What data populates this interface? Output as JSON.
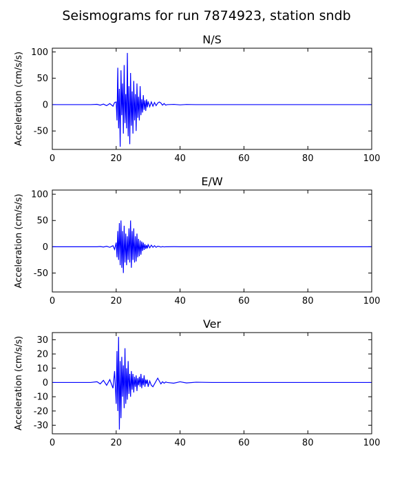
{
  "title": "Seismograms for run 7874923, station sndb",
  "chart_data": [
    {
      "type": "line",
      "title": "N/S",
      "ylabel": "Acceleration (cm/s/s)",
      "color": "#0000ff",
      "grid": false,
      "xlim": [
        0,
        100
      ],
      "xticks": [
        0,
        20,
        40,
        60,
        80,
        100
      ],
      "ylim": [
        -85,
        107
      ],
      "yticks": [
        -50,
        0,
        50,
        100
      ],
      "x": [
        0,
        5,
        10,
        12,
        14,
        15,
        16,
        17,
        18,
        19,
        19.5,
        20,
        20.25,
        20.5,
        20.75,
        21,
        21.25,
        21.5,
        21.75,
        22,
        22.25,
        22.5,
        22.75,
        23,
        23.25,
        23.5,
        23.75,
        24,
        24.25,
        24.5,
        24.75,
        25,
        25.25,
        25.5,
        25.75,
        26,
        26.25,
        26.5,
        26.75,
        27,
        27.25,
        27.5,
        27.75,
        28,
        28.25,
        28.5,
        28.75,
        29,
        29.25,
        29.5,
        29.75,
        30,
        30.5,
        31,
        31.5,
        32,
        32.5,
        33,
        33.5,
        34,
        34.5,
        35,
        35.5,
        36,
        38,
        40,
        42,
        45,
        50,
        60,
        70,
        80,
        90,
        100
      ],
      "values": [
        0,
        0,
        0,
        0,
        0.5,
        -1,
        1,
        -2,
        2,
        -3,
        4,
        5,
        -30,
        70,
        -45,
        30,
        -80,
        65,
        -20,
        40,
        -55,
        75,
        -35,
        20,
        -45,
        98,
        -60,
        35,
        -75,
        60,
        -40,
        25,
        -55,
        45,
        -30,
        20,
        -50,
        40,
        -25,
        15,
        -30,
        35,
        -20,
        10,
        -15,
        18,
        -10,
        8,
        -12,
        10,
        -5,
        6,
        -4,
        5,
        -3,
        4,
        -2,
        3,
        5,
        3,
        -1,
        2,
        -1,
        0,
        0.5,
        -0.5,
        0.3,
        0,
        0,
        0,
        0,
        0,
        0,
        0
      ]
    },
    {
      "type": "line",
      "title": "E/W",
      "ylabel": "Acceleration (cm/s/s)",
      "color": "#0000ff",
      "grid": false,
      "xlim": [
        0,
        100
      ],
      "xticks": [
        0,
        20,
        40,
        60,
        80,
        100
      ],
      "ylim": [
        -86,
        108
      ],
      "yticks": [
        -50,
        0,
        50,
        100
      ],
      "x": [
        0,
        5,
        10,
        12,
        14,
        15,
        16,
        17,
        18,
        19,
        19.5,
        20,
        20.25,
        20.5,
        20.75,
        21,
        21.25,
        21.5,
        21.75,
        22,
        22.25,
        22.5,
        22.75,
        23,
        23.25,
        23.5,
        23.75,
        24,
        24.25,
        24.5,
        24.75,
        25,
        25.25,
        25.5,
        25.75,
        26,
        26.25,
        26.5,
        26.75,
        27,
        27.25,
        27.5,
        27.75,
        28,
        28.25,
        28.5,
        28.75,
        29,
        29.25,
        29.5,
        29.75,
        30,
        30.5,
        31,
        31.5,
        32,
        32.5,
        33,
        33.5,
        34,
        34.5,
        35,
        35.5,
        36,
        38,
        40,
        42,
        45,
        50,
        60,
        70,
        80,
        90,
        100
      ],
      "values": [
        0,
        0,
        0,
        0,
        0,
        0.5,
        -0.5,
        1,
        -1,
        2,
        -5,
        8,
        -20,
        30,
        -25,
        45,
        -35,
        50,
        -40,
        30,
        -50,
        40,
        -30,
        25,
        -35,
        20,
        -25,
        35,
        -30,
        50,
        -40,
        30,
        -25,
        35,
        -30,
        20,
        -28,
        25,
        -20,
        15,
        -18,
        12,
        -15,
        10,
        -8,
        8,
        -6,
        5,
        -4,
        3,
        -3,
        4,
        -2,
        3,
        -1,
        2,
        -1,
        1,
        0.5,
        -0.5,
        0.3,
        -0.2,
        0,
        0,
        0.2,
        0,
        0,
        0,
        0,
        0,
        0,
        0,
        0,
        0
      ]
    },
    {
      "type": "line",
      "title": "Ver",
      "ylabel": "Acceleration (cm/s/s)",
      "color": "#0000ff",
      "grid": false,
      "xlim": [
        0,
        100
      ],
      "xticks": [
        0,
        20,
        40,
        60,
        80,
        100
      ],
      "ylim": [
        -36,
        35
      ],
      "yticks": [
        -30,
        -20,
        -10,
        0,
        10,
        20,
        30
      ],
      "x": [
        0,
        5,
        10,
        12,
        14,
        15,
        16,
        17,
        18,
        19,
        19.5,
        20,
        20.25,
        20.5,
        20.75,
        21,
        21.25,
        21.5,
        21.75,
        22,
        22.25,
        22.5,
        22.75,
        23,
        23.25,
        23.5,
        23.75,
        24,
        24.25,
        24.5,
        24.75,
        25,
        25.25,
        25.5,
        25.75,
        26,
        26.25,
        26.5,
        26.75,
        27,
        27.25,
        27.5,
        27.75,
        28,
        28.25,
        28.5,
        28.75,
        29,
        29.25,
        29.5,
        29.75,
        30,
        30.5,
        31,
        31.5,
        32,
        32.5,
        33,
        33.5,
        34,
        34.5,
        35,
        35.5,
        36,
        38,
        40,
        42,
        45,
        50,
        60,
        70,
        80,
        90,
        100
      ],
      "values": [
        0,
        0,
        0,
        0,
        0.5,
        -1,
        1.5,
        -2,
        2,
        -4,
        8,
        -15,
        22,
        -20,
        32,
        -33,
        15,
        -25,
        18,
        -10,
        12,
        -18,
        24,
        -15,
        10,
        -12,
        15,
        -8,
        6,
        -10,
        8,
        -5,
        6,
        -7,
        4,
        -3,
        5,
        -6,
        3,
        -2,
        4,
        -3,
        6,
        -4,
        3,
        -2,
        5,
        -3,
        2,
        -1,
        2,
        -3,
        1,
        -2,
        -3,
        -1,
        1,
        3,
        1,
        -1,
        0.5,
        -0.5,
        0.3,
        0,
        -0.5,
        0.5,
        -0.3,
        0.2,
        0,
        0,
        0,
        0,
        0,
        0
      ]
    }
  ]
}
